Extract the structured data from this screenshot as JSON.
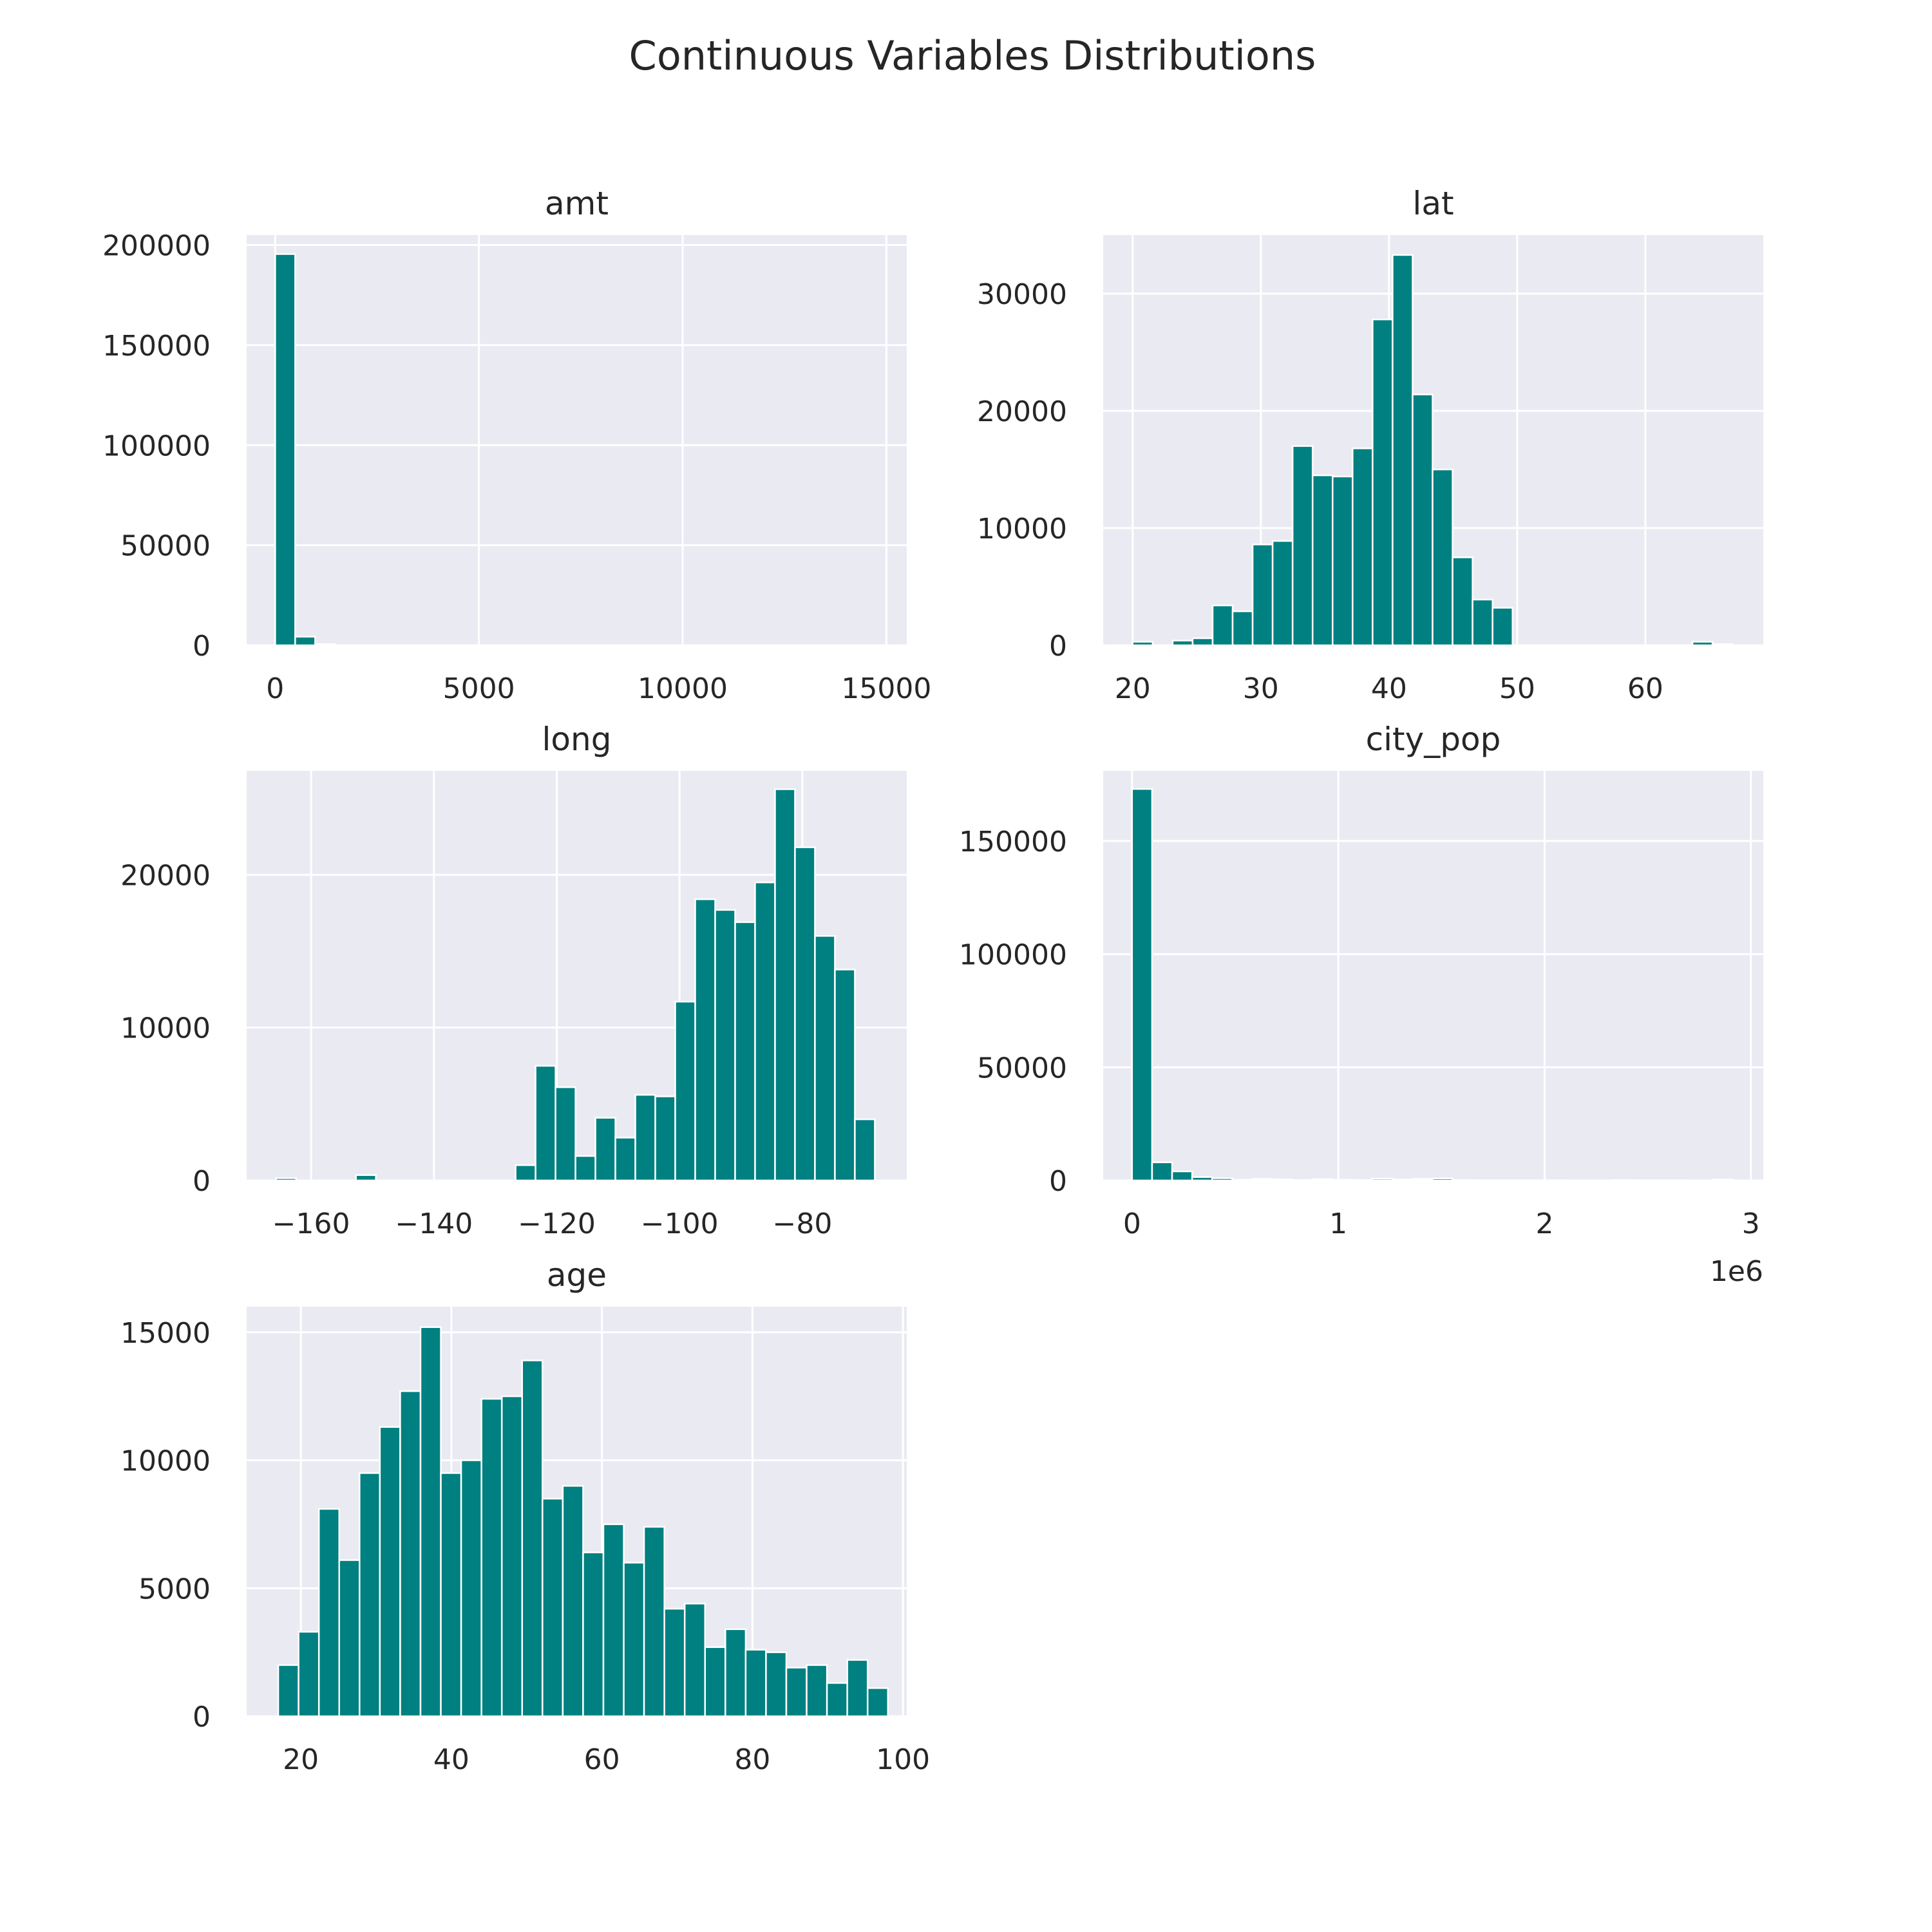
{
  "figure": {
    "title": "Continuous Variables Distributions",
    "bar_color": "#008080",
    "background_color": "#eaeaf2"
  },
  "chart_data": [
    {
      "type": "bar",
      "title": "amt",
      "bin_start": 1,
      "bin_width": 490,
      "values": [
        195500,
        4300,
        600,
        80,
        30,
        15,
        10,
        5,
        3,
        2,
        1,
        1,
        1,
        0,
        0,
        0,
        0,
        0,
        0,
        0,
        0,
        0,
        0,
        0,
        0,
        0,
        0,
        0,
        0,
        2
      ],
      "xlim": [
        -700,
        15500
      ],
      "ylim": [
        0,
        205000
      ],
      "xticks": [
        0,
        5000,
        10000,
        15000
      ],
      "xtick_labels": [
        "0",
        "5000",
        "10000",
        "15000"
      ],
      "yticks": [
        0,
        50000,
        100000,
        150000,
        200000
      ],
      "ytick_labels": [
        "0",
        "50000",
        "100000",
        "150000",
        "200000"
      ],
      "grid": true
    },
    {
      "type": "bar",
      "title": "lat",
      "bin_start": 20.0,
      "bin_width": 1.56,
      "values": [
        300,
        0,
        400,
        600,
        3400,
        2900,
        8600,
        8900,
        17000,
        14500,
        14400,
        16800,
        27800,
        33300,
        21400,
        15000,
        7500,
        3900,
        3200,
        0,
        0,
        0,
        0,
        0,
        0,
        0,
        0,
        0,
        300,
        100
      ],
      "xlim": [
        17.7,
        69.2
      ],
      "ylim": [
        0,
        35000
      ],
      "xticks": [
        20,
        30,
        40,
        50,
        60
      ],
      "xtick_labels": [
        "20",
        "30",
        "40",
        "50",
        "60"
      ],
      "yticks": [
        0,
        10000,
        20000,
        30000
      ],
      "ytick_labels": [
        "0",
        "10000",
        "20000",
        "30000"
      ],
      "grid": true
    },
    {
      "type": "bar",
      "title": "long",
      "bin_start": -165.7,
      "bin_width": 3.25,
      "values": [
        150,
        0,
        0,
        0,
        350,
        0,
        0,
        0,
        0,
        0,
        0,
        0,
        1000,
        7500,
        6100,
        1600,
        4100,
        2800,
        5600,
        5500,
        11700,
        18400,
        17700,
        16900,
        19500,
        25600,
        21800,
        16000,
        13800,
        4000
      ],
      "xlim": [
        -170.5,
        -63.0
      ],
      "ylim": [
        0,
        26800
      ],
      "xticks": [
        -160,
        -140,
        -120,
        -100,
        -80
      ],
      "xtick_labels": [
        "−160",
        "−140",
        "−120",
        "−100",
        "−80"
      ],
      "yticks": [
        0,
        10000,
        20000
      ],
      "ytick_labels": [
        "0",
        "10000",
        "20000"
      ],
      "grid": true
    },
    {
      "type": "bar",
      "title": "city_pop",
      "bin_start": 23,
      "bin_width": 97100,
      "values": [
        173000,
        8000,
        4000,
        1500,
        1000,
        300,
        700,
        500,
        200,
        600,
        300,
        200,
        800,
        400,
        700,
        900,
        200,
        100,
        100,
        100,
        100,
        100,
        0,
        0,
        200,
        100,
        100,
        100,
        0,
        400
      ],
      "xlim": [
        -140000,
        3060000
      ],
      "ylim": [
        0,
        181000
      ],
      "xticks": [
        0,
        1000000,
        2000000,
        3000000
      ],
      "xtick_labels": [
        "0",
        "1",
        "2",
        "3"
      ],
      "yticks": [
        0,
        50000,
        100000,
        150000
      ],
      "ytick_labels": [
        "0",
        "50000",
        "100000",
        "150000"
      ],
      "offset_label": "1e6",
      "grid": true
    },
    {
      "type": "bar",
      "title": "age",
      "bin_start": 17,
      "bin_width": 2.7,
      "values": [
        2000,
        3300,
        8100,
        6100,
        9500,
        11300,
        12700,
        15200,
        9500,
        10000,
        12400,
        12500,
        13900,
        8500,
        9000,
        6400,
        7500,
        6000,
        7400,
        4200,
        4400,
        2700,
        3400,
        2600,
        2500,
        1900,
        2000,
        1300,
        2200,
        1100
      ],
      "xlim": [
        12.8,
        100.5
      ],
      "ylim": [
        0,
        16000
      ],
      "xticks": [
        20,
        40,
        60,
        80,
        100
      ],
      "xtick_labels": [
        "20",
        "40",
        "60",
        "80",
        "100"
      ],
      "yticks": [
        0,
        5000,
        10000,
        15000
      ],
      "ytick_labels": [
        "0",
        "5000",
        "10000",
        "15000"
      ],
      "grid": true
    }
  ]
}
